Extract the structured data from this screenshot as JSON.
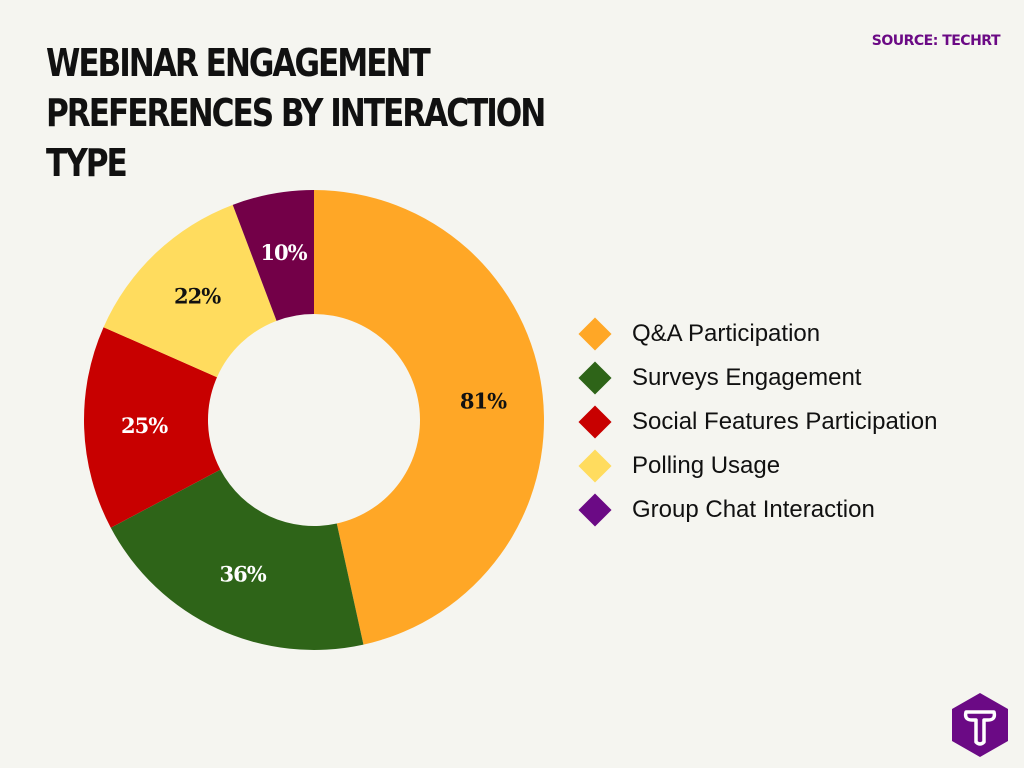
{
  "header": {
    "title": "Webinar Engagement Preferences by Interaction Type",
    "source": "SOURCE: TECHRT"
  },
  "chart_data": {
    "type": "pie",
    "donut": true,
    "title": "Webinar Engagement Preferences by Interaction Type",
    "categories": [
      "Q&A Participation",
      "Surveys Engagement",
      "Social Features Participation",
      "Polling Usage",
      "Group Chat Interaction"
    ],
    "values": [
      81,
      36,
      25,
      22,
      10
    ],
    "labels": [
      "81%",
      "36%",
      "25%",
      "22%",
      "10%"
    ],
    "colors": [
      "#ffa726",
      "#2e6418",
      "#c80000",
      "#ffdc5e",
      "#730048"
    ],
    "legend_colors": [
      "#ffa726",
      "#2e6418",
      "#c80000",
      "#ffdc5e",
      "#6b0a85"
    ],
    "label_colors": [
      "#111111",
      "#ffffff",
      "#ffffff",
      "#111111",
      "#ffffff"
    ],
    "legend_position": "right"
  },
  "logo": {
    "letter": "T",
    "color": "#6b0a85"
  }
}
